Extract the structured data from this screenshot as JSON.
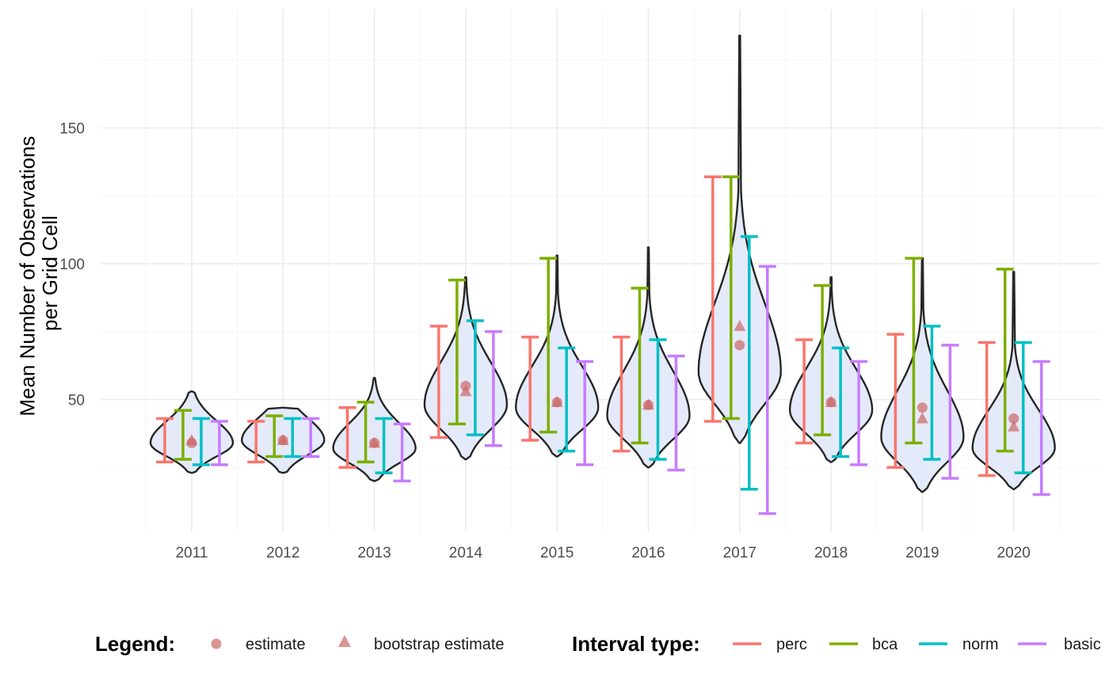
{
  "chart_data": {
    "type": "violin",
    "ylabel_lines": [
      "Mean Number of Observations",
      "per Grid Cell"
    ],
    "xlabel": "",
    "ylim": [
      0,
      185
    ],
    "y_ticks": [
      50,
      100,
      150
    ],
    "grid": true,
    "legend_position": "bottom",
    "categories": [
      "2011",
      "2012",
      "2013",
      "2014",
      "2015",
      "2016",
      "2017",
      "2018",
      "2019",
      "2020"
    ],
    "violins": [
      {
        "min": 23,
        "max": 53,
        "mode": 34
      },
      {
        "min": 23,
        "max": 47,
        "mode": 35
      },
      {
        "min": 20,
        "max": 58,
        "mode": 32
      },
      {
        "min": 28,
        "max": 95,
        "mode": 48
      },
      {
        "min": 29,
        "max": 103,
        "mode": 47
      },
      {
        "min": 25,
        "max": 106,
        "mode": 44
      },
      {
        "min": 34,
        "max": 184,
        "mode": 60
      },
      {
        "min": 27,
        "max": 95,
        "mode": 46
      },
      {
        "min": 16,
        "max": 102,
        "mode": 36
      },
      {
        "min": 17,
        "max": 97,
        "mode": 32
      }
    ],
    "estimate": [
      34,
      35,
      34,
      55,
      49,
      48,
      70,
      49,
      47,
      43
    ],
    "bootstrap_estimate": [
      35,
      35,
      34,
      53,
      49,
      48,
      77,
      49,
      43,
      40
    ],
    "intervals": [
      {
        "name": "perc",
        "color": "#F8766D",
        "lower": [
          27,
          27,
          25,
          36,
          35,
          31,
          42,
          34,
          25,
          22
        ],
        "upper": [
          43,
          42,
          47,
          77,
          73,
          73,
          132,
          72,
          74,
          71
        ]
      },
      {
        "name": "bca",
        "color": "#7CAE00",
        "lower": [
          28,
          29,
          27,
          41,
          38,
          34,
          43,
          37,
          34,
          31
        ],
        "upper": [
          46,
          44,
          49,
          94,
          102,
          91,
          132,
          92,
          102,
          98
        ]
      },
      {
        "name": "norm",
        "color": "#00BFC4",
        "lower": [
          26,
          29,
          23,
          37,
          31,
          28,
          17,
          29,
          28,
          23
        ],
        "upper": [
          43,
          43,
          43,
          79,
          69,
          72,
          110,
          69,
          77,
          71
        ]
      },
      {
        "name": "basic",
        "color": "#C77CFF",
        "lower": [
          26,
          29,
          20,
          33,
          26,
          24,
          8,
          26,
          21,
          15
        ],
        "upper": [
          42,
          43,
          41,
          75,
          64,
          66,
          99,
          64,
          70,
          64
        ]
      }
    ],
    "colors": {
      "violin_fill": "#dfe6f8",
      "violin_stroke": "#262626",
      "estimate": "#cc6666",
      "grid_major": "#ebebeb",
      "grid_minor": "#f5f5f5"
    }
  },
  "legend": {
    "title": "Legend:",
    "items": [
      {
        "label": "estimate",
        "shape": "circle"
      },
      {
        "label": "bootstrap estimate",
        "shape": "triangle"
      }
    ]
  },
  "interval_legend": {
    "title": "Interval type:",
    "items": [
      "perc",
      "bca",
      "norm",
      "basic"
    ]
  }
}
